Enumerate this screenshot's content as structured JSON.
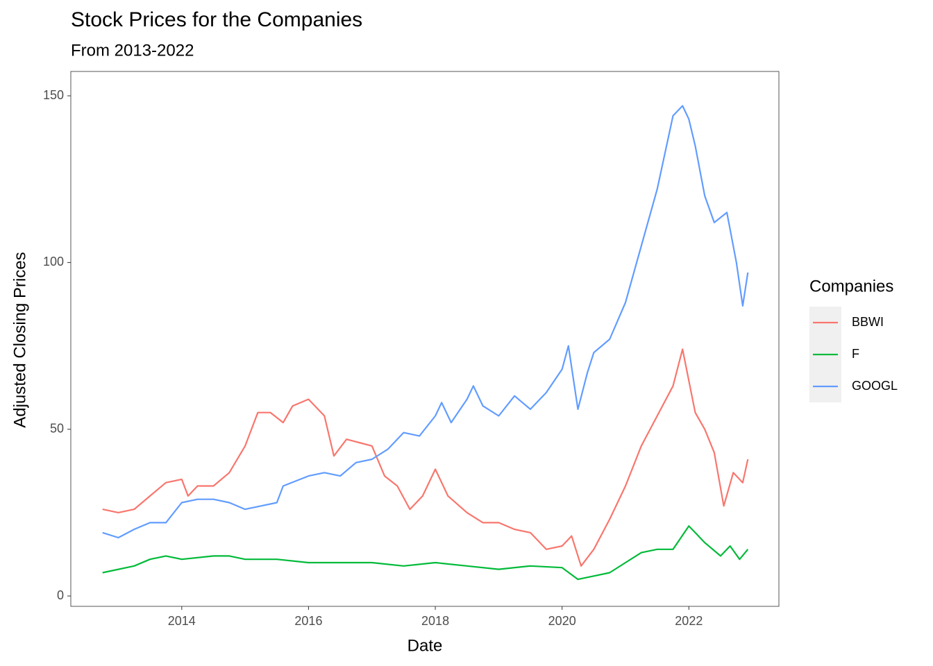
{
  "chart_data": {
    "type": "line",
    "title": "Stock Prices for the Companies",
    "subtitle": "From 2013-2022",
    "x_label": "Date",
    "y_label": "Adjusted Closing Prices",
    "legend_title": "Companies",
    "legend_position": "right",
    "grid": false,
    "xlim": [
      2012.25,
      2023.42
    ],
    "xticks": [
      2014,
      2016,
      2018,
      2020,
      2022
    ],
    "ylim": [
      -3.1,
      157.3
    ],
    "yticks": [
      0,
      50,
      100,
      150
    ],
    "series": [
      {
        "name": "BBWI",
        "color": "#F8766D",
        "x": [
          2012.75,
          2013.0,
          2013.25,
          2013.5,
          2013.75,
          2014.0,
          2014.1,
          2014.25,
          2014.5,
          2014.75,
          2015.0,
          2015.2,
          2015.4,
          2015.6,
          2015.75,
          2016.0,
          2016.25,
          2016.4,
          2016.6,
          2016.8,
          2017.0,
          2017.2,
          2017.4,
          2017.6,
          2017.8,
          2018.0,
          2018.2,
          2018.5,
          2018.75,
          2019.0,
          2019.25,
          2019.5,
          2019.75,
          2020.0,
          2020.15,
          2020.3,
          2020.5,
          2020.75,
          2021.0,
          2021.25,
          2021.5,
          2021.75,
          2021.9,
          2022.1,
          2022.25,
          2022.4,
          2022.55,
          2022.7,
          2022.85,
          2022.93
        ],
        "values": [
          26,
          25,
          26,
          30,
          34,
          35,
          30,
          33,
          33,
          37,
          45,
          55,
          55,
          52,
          57,
          59,
          54,
          42,
          47,
          46,
          45,
          36,
          33,
          26,
          30,
          38,
          30,
          25,
          22,
          22,
          20,
          19,
          14,
          15,
          18,
          9,
          14,
          23,
          33,
          45,
          54,
          63,
          74,
          55,
          50,
          43,
          27,
          37,
          34,
          41
        ]
      },
      {
        "name": "F",
        "color": "#00BA38",
        "x": [
          2012.75,
          2013.25,
          2013.5,
          2013.75,
          2014.0,
          2014.5,
          2014.75,
          2015.0,
          2015.5,
          2016.0,
          2016.5,
          2017.0,
          2017.5,
          2018.0,
          2018.5,
          2019.0,
          2019.5,
          2020.0,
          2020.25,
          2020.5,
          2020.75,
          2021.0,
          2021.25,
          2021.5,
          2021.75,
          2022.0,
          2022.1,
          2022.25,
          2022.5,
          2022.65,
          2022.8,
          2022.93
        ],
        "values": [
          7,
          9,
          11,
          12,
          11,
          12,
          12,
          11,
          11,
          10,
          10,
          10,
          9,
          10,
          9,
          8,
          9,
          8.5,
          5,
          6,
          7,
          10,
          13,
          14,
          14,
          21,
          19,
          16,
          12,
          15,
          11,
          14
        ]
      },
      {
        "name": "GOOGL",
        "color": "#619CFF",
        "x": [
          2012.75,
          2013.0,
          2013.25,
          2013.5,
          2013.75,
          2014.0,
          2014.25,
          2014.5,
          2014.75,
          2015.0,
          2015.25,
          2015.5,
          2015.6,
          2016.0,
          2016.25,
          2016.5,
          2016.75,
          2017.0,
          2017.25,
          2017.5,
          2017.75,
          2018.0,
          2018.1,
          2018.25,
          2018.5,
          2018.6,
          2018.75,
          2019.0,
          2019.25,
          2019.5,
          2019.75,
          2020.0,
          2020.1,
          2020.25,
          2020.4,
          2020.5,
          2020.75,
          2021.0,
          2021.25,
          2021.5,
          2021.75,
          2021.9,
          2022.0,
          2022.1,
          2022.25,
          2022.4,
          2022.6,
          2022.75,
          2022.85,
          2022.93
        ],
        "values": [
          19,
          17.5,
          20,
          22,
          22,
          28,
          29,
          29,
          28,
          26,
          27,
          28,
          33,
          36,
          37,
          36,
          40,
          41,
          44,
          49,
          48,
          54,
          58,
          52,
          59,
          63,
          57,
          54,
          60,
          56,
          61,
          68,
          75,
          56,
          67,
          73,
          77,
          88,
          105,
          122,
          144,
          147,
          143,
          135,
          120,
          112,
          115,
          100,
          87,
          97
        ]
      }
    ]
  }
}
